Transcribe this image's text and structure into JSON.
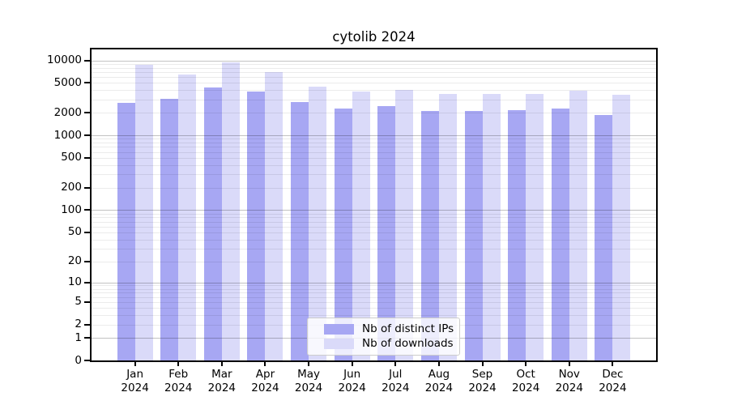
{
  "chart_data": {
    "type": "bar",
    "title": "cytolib 2024",
    "xlabel": "",
    "ylabel": "",
    "categories": [
      "Jan 2024",
      "Feb 2024",
      "Mar 2024",
      "Apr 2024",
      "May 2024",
      "Jun 2024",
      "Jul 2024",
      "Aug 2024",
      "Sep 2024",
      "Oct 2024",
      "Nov 2024",
      "Dec 2024"
    ],
    "series": [
      {
        "name": "Nb of distinct IPs",
        "color": "#a7a7f3",
        "values": [
          2700,
          3100,
          4400,
          3850,
          2800,
          2280,
          2450,
          2100,
          2110,
          2160,
          2300,
          1890
        ]
      },
      {
        "name": "Nb of downloads",
        "color": "#dadaf9",
        "values": [
          8800,
          6500,
          9300,
          6900,
          4500,
          3800,
          4000,
          3600,
          3580,
          3580,
          3960,
          3520
        ]
      }
    ],
    "yscale": "log1p",
    "ylim": [
      0,
      14000
    ],
    "yticks": [
      0,
      1,
      2,
      5,
      10,
      20,
      50,
      100,
      200,
      500,
      1000,
      2000,
      5000,
      10000
    ],
    "grid": "major-and-minor-horizontal",
    "legend_position": "inside-bottom-center"
  }
}
